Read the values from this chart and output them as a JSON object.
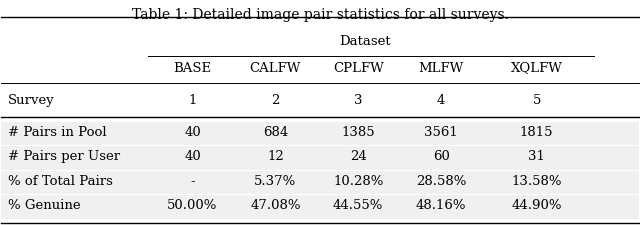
{
  "title": "Table 1: Detailed image pair statistics for all surveys.",
  "dataset_label": "Dataset",
  "col_group_header": [
    "BASE",
    "CALFW",
    "CPLFW",
    "MLFW",
    "XQLFW"
  ],
  "row_header_col": "Survey",
  "survey_row": [
    "1",
    "2",
    "3",
    "4",
    "5"
  ],
  "row_labels": [
    "# Pairs in Pool",
    "# Pairs per User",
    "% of Total Pairs",
    "% Genuine"
  ],
  "data": [
    [
      "40",
      "684",
      "1385",
      "3561",
      "1815"
    ],
    [
      "40",
      "12",
      "24",
      "60",
      "31"
    ],
    [
      "-",
      "5.37%",
      "10.28%",
      "28.58%",
      "13.58%"
    ],
    [
      "50.00%",
      "47.08%",
      "44.55%",
      "48.16%",
      "44.90%"
    ]
  ],
  "shade_color": "#f0f0f0",
  "bg_color": "#ffffff",
  "font_size": 9.5,
  "title_font_size": 10
}
